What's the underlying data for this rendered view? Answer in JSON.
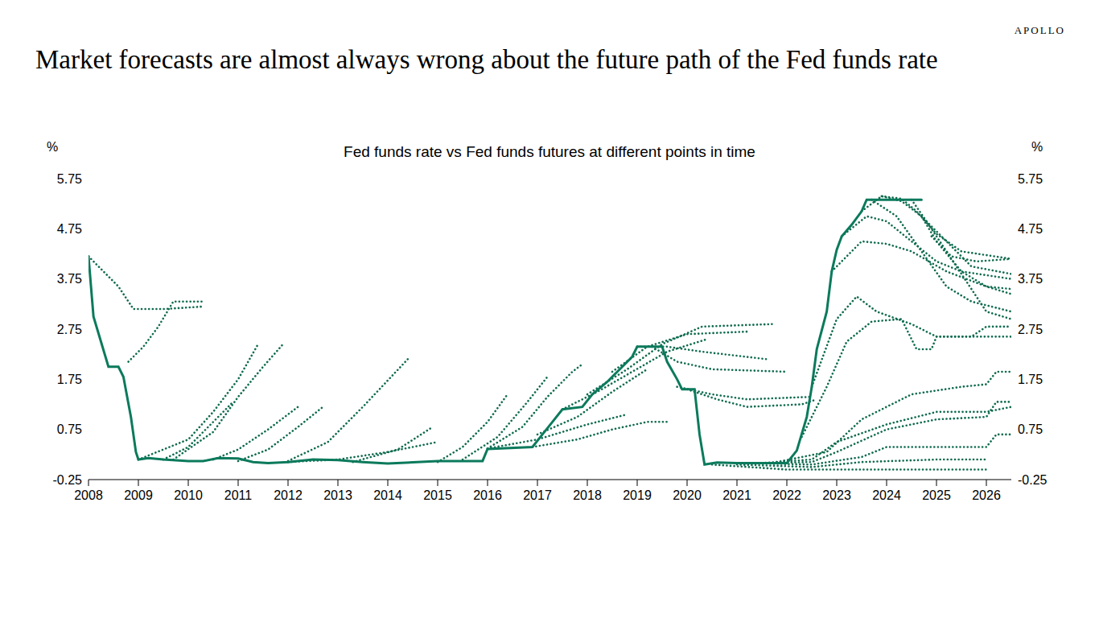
{
  "chart_data": {
    "type": "line",
    "title": "Market forecasts are almost always wrong about the future path of the Fed funds rate",
    "subtitle": "Fed funds rate vs Fed funds futures at different points in time",
    "brand": "APOLLO",
    "y_label": "%",
    "y2_label": "%",
    "grid": false,
    "xlim": [
      2008,
      2026.5
    ],
    "xticks": [
      2008,
      2009,
      2010,
      2011,
      2012,
      2013,
      2014,
      2015,
      2016,
      2017,
      2018,
      2019,
      2020,
      2021,
      2022,
      2023,
      2024,
      2025,
      2026
    ],
    "ylim": [
      -0.25,
      5.75
    ],
    "yticks": [
      -0.25,
      0.75,
      1.75,
      2.75,
      3.75,
      4.75,
      5.75
    ],
    "y2lim": [
      -0.25,
      5.75
    ],
    "y2ticks": [
      -0.25,
      0.75,
      1.75,
      2.75,
      3.75,
      4.75,
      5.75
    ],
    "series": [
      {
        "color": "#0f6b4f",
        "line_style": "dotted",
        "x": [
          2008.0,
          2008.3,
          2008.6,
          2008.9,
          2009.5,
          2010.3
        ],
        "values": [
          4.2,
          3.9,
          3.6,
          3.15,
          3.15,
          3.2
        ]
      },
      {
        "color": "#0f6b4f",
        "line_style": "dotted",
        "x": [
          2008.8,
          2009.1,
          2009.4,
          2009.7,
          2010.3
        ],
        "values": [
          2.1,
          2.4,
          2.8,
          3.3,
          3.3
        ]
      },
      {
        "color": "#0f6b4f",
        "line_style": "dotted",
        "x": [
          2009.0,
          2010.0,
          2010.5,
          2011.0,
          2011.4
        ],
        "values": [
          0.15,
          0.55,
          1.1,
          1.75,
          2.45
        ]
      },
      {
        "color": "#0f6b4f",
        "line_style": "dotted",
        "x": [
          2009.7,
          2010.5,
          2011.0,
          2011.5,
          2011.9
        ],
        "values": [
          0.15,
          0.7,
          1.4,
          2.0,
          2.45
        ]
      },
      {
        "color": "#0f6b4f",
        "line_style": "dotted",
        "x": [
          2009.5,
          2010.0,
          2010.5,
          2010.9
        ],
        "values": [
          0.15,
          0.4,
          0.9,
          1.3
        ]
      },
      {
        "color": "#0f6b4f",
        "line_style": "dotted",
        "x": [
          2010.5,
          2011.0,
          2011.6,
          2012.2
        ],
        "values": [
          0.15,
          0.35,
          0.75,
          1.2
        ]
      },
      {
        "color": "#0f6b4f",
        "line_style": "dotted",
        "x": [
          2011.0,
          2011.6,
          2012.2,
          2012.7
        ],
        "values": [
          0.12,
          0.35,
          0.8,
          1.2
        ]
      },
      {
        "color": "#0f6b4f",
        "line_style": "dotted",
        "x": [
          2012.0,
          2012.8,
          2013.5,
          2014.4
        ],
        "values": [
          0.12,
          0.5,
          1.2,
          2.15
        ]
      },
      {
        "color": "#0f6b4f",
        "line_style": "dotted",
        "x": [
          2013.3,
          2014.2,
          2014.9
        ],
        "values": [
          0.1,
          0.35,
          0.8
        ]
      },
      {
        "color": "#0f6b4f",
        "line_style": "dotted",
        "x": [
          2012.0,
          2013.0,
          2014.0,
          2015.0
        ],
        "values": [
          0.1,
          0.15,
          0.3,
          0.5
        ]
      },
      {
        "color": "#0f6b4f",
        "line_style": "dotted",
        "x": [
          2015.0,
          2015.5,
          2016.0,
          2016.4
        ],
        "values": [
          0.1,
          0.4,
          0.9,
          1.45
        ]
      },
      {
        "color": "#0f6b4f",
        "line_style": "dotted",
        "x": [
          2015.5,
          2016.2,
          2016.8,
          2017.2
        ],
        "values": [
          0.15,
          0.6,
          1.3,
          1.8
        ]
      },
      {
        "color": "#0f6b4f",
        "line_style": "dotted",
        "x": [
          2016.0,
          2016.7,
          2017.2,
          2017.7,
          2017.9
        ],
        "values": [
          0.37,
          0.8,
          1.4,
          1.9,
          2.05
        ]
      },
      {
        "color": "#0f6b4f",
        "line_style": "dotted",
        "x": [
          2016.0,
          2017.0,
          2018.0,
          2018.8
        ],
        "values": [
          0.37,
          0.55,
          0.85,
          1.05
        ]
      },
      {
        "color": "#0f6b4f",
        "line_style": "dotted",
        "x": [
          2016.9,
          2017.8,
          2018.5,
          2019.2,
          2019.6
        ],
        "values": [
          0.4,
          0.55,
          0.75,
          0.9,
          0.9
        ]
      },
      {
        "color": "#0f6b4f",
        "line_style": "dotted",
        "x": [
          2017.0,
          2017.8,
          2018.5,
          2019.2
        ],
        "values": [
          0.65,
          1.0,
          1.5,
          1.95
        ]
      },
      {
        "color": "#0f6b4f",
        "line_style": "dotted",
        "x": [
          2017.5,
          2018.2,
          2018.9,
          2019.6,
          2020.4
        ],
        "values": [
          1.15,
          1.5,
          1.9,
          2.3,
          2.55
        ]
      },
      {
        "color": "#0f6b4f",
        "line_style": "dotted",
        "x": [
          2018.0,
          2018.8,
          2019.5,
          2020.3,
          2021.7
        ],
        "values": [
          1.45,
          1.95,
          2.45,
          2.8,
          2.85
        ]
      },
      {
        "color": "#0f6b4f",
        "line_style": "dotted",
        "x": [
          2018.5,
          2019.2,
          2020.0,
          2021.2
        ],
        "values": [
          1.9,
          2.4,
          2.65,
          2.7
        ]
      },
      {
        "color": "#0f6b4f",
        "line_style": "dotted",
        "x": [
          2019.0,
          2019.6,
          2020.3,
          2021.6
        ],
        "values": [
          2.4,
          2.4,
          2.3,
          2.15
        ]
      },
      {
        "color": "#0f6b4f",
        "line_style": "dotted",
        "x": [
          2019.3,
          2019.8,
          2020.5,
          2022.0
        ],
        "values": [
          2.4,
          2.1,
          1.95,
          1.9
        ]
      },
      {
        "color": "#0f6b4f",
        "line_style": "dotted",
        "x": [
          2019.8,
          2020.5,
          2021.2,
          2022.5
        ],
        "values": [
          1.6,
          1.45,
          1.35,
          1.4
        ]
      },
      {
        "color": "#0f6b4f",
        "line_style": "dotted",
        "x": [
          2020.0,
          2020.6,
          2021.2,
          2022.3,
          2022.6
        ],
        "values": [
          1.55,
          1.35,
          1.2,
          1.25,
          1.35
        ]
      },
      {
        "color": "#0f6b4f",
        "line_style": "dotted",
        "x": [
          2020.5,
          2022.0,
          2023.0,
          2026.0
        ],
        "values": [
          0.05,
          -0.05,
          -0.05,
          -0.05
        ]
      },
      {
        "color": "#0f6b4f",
        "line_style": "dotted",
        "x": [
          2021.0,
          2022.5,
          2023.5,
          2025.0,
          2026.0
        ],
        "values": [
          0.05,
          0.0,
          0.1,
          0.15,
          0.15
        ]
      },
      {
        "color": "#0f6b4f",
        "line_style": "dotted",
        "x": [
          2021.0,
          2022.5,
          2023.5,
          2024.0,
          2026.0,
          2026.2,
          2026.5
        ],
        "values": [
          0.08,
          0.05,
          0.2,
          0.4,
          0.4,
          0.65,
          0.65
        ]
      },
      {
        "color": "#0f6b4f",
        "line_style": "dotted",
        "x": [
          2021.5,
          2022.5,
          2023.0,
          2024.0,
          2025.0,
          2026.0,
          2026.2,
          2026.5
        ],
        "values": [
          0.08,
          0.1,
          0.3,
          0.75,
          0.95,
          1.0,
          1.3,
          1.3
        ]
      },
      {
        "color": "#0f6b4f",
        "line_style": "dotted",
        "x": [
          2021.5,
          2022.5,
          2023.0,
          2024.0,
          2025.0,
          2026.0,
          2026.5
        ],
        "values": [
          0.08,
          0.15,
          0.5,
          0.85,
          1.1,
          1.1,
          1.2
        ]
      },
      {
        "color": "#0f6b4f",
        "line_style": "dotted",
        "x": [
          2021.8,
          2022.8,
          2023.5,
          2024.5,
          2025.5,
          2026.0,
          2026.2,
          2026.5
        ],
        "values": [
          0.1,
          0.3,
          0.95,
          1.45,
          1.6,
          1.65,
          1.9,
          1.9
        ]
      },
      {
        "color": "#0f6b4f",
        "line_style": "dotted",
        "x": [
          2022.3,
          2022.8,
          2023.2,
          2023.7,
          2024.3,
          2024.6,
          2024.9,
          2025.0,
          2026.5
        ],
        "values": [
          0.6,
          1.6,
          2.5,
          2.9,
          2.95,
          2.35,
          2.35,
          2.6,
          2.6
        ]
      },
      {
        "color": "#0f6b4f",
        "line_style": "dotted",
        "x": [
          2022.5,
          2023.0,
          2023.4,
          2023.8,
          2024.5,
          2025.0,
          2025.7,
          2026.0,
          2026.5
        ],
        "values": [
          1.6,
          2.95,
          3.4,
          3.1,
          2.85,
          2.6,
          2.6,
          2.8,
          2.8
        ]
      },
      {
        "color": "#0f6b4f",
        "line_style": "dotted",
        "x": [
          2022.9,
          2023.5,
          2024.0,
          2024.5,
          2025.2,
          2026.0,
          2026.5
        ],
        "values": [
          3.9,
          4.5,
          4.45,
          4.3,
          3.9,
          3.6,
          3.55
        ]
      },
      {
        "color": "#0f6b4f",
        "line_style": "dotted",
        "x": [
          2023.1,
          2023.6,
          2024.0,
          2024.5,
          2025.0,
          2025.5,
          2026.5
        ],
        "values": [
          4.6,
          5.0,
          4.9,
          4.5,
          4.1,
          3.9,
          3.75
        ]
      },
      {
        "color": "#0f6b4f",
        "line_style": "dotted",
        "x": [
          2023.5,
          2023.9,
          2024.3,
          2024.7,
          2025.2,
          2025.7,
          2026.5
        ],
        "values": [
          5.1,
          5.4,
          5.3,
          5.0,
          4.5,
          4.0,
          3.85
        ]
      },
      {
        "color": "#0f6b4f",
        "line_style": "dotted",
        "x": [
          2023.9,
          2024.3,
          2024.6,
          2025.0,
          2025.5,
          2026.5
        ],
        "values": [
          5.4,
          5.35,
          5.1,
          4.65,
          4.3,
          4.15
        ]
      },
      {
        "color": "#0f6b4f",
        "line_style": "dotted",
        "x": [
          2024.5,
          2024.8,
          2025.2,
          2025.6,
          2026.0,
          2026.5
        ],
        "values": [
          5.33,
          4.9,
          4.3,
          3.7,
          3.1,
          2.95
        ]
      },
      {
        "color": "#0f6b4f",
        "line_style": "dotted",
        "x": [
          2024.7,
          2025.0,
          2025.5,
          2026.0,
          2026.5
        ],
        "values": [
          5.0,
          4.5,
          3.9,
          3.6,
          3.45
        ]
      },
      {
        "color": "#0f6b4f",
        "line_style": "dotted",
        "x": [
          2023.7,
          2024.2,
          2024.7,
          2025.2,
          2025.7,
          2026.5
        ],
        "values": [
          5.33,
          5.0,
          4.3,
          3.6,
          3.3,
          3.1
        ]
      },
      {
        "color": "#0f6b4f",
        "line_style": "dotted",
        "x": [
          2024.9,
          2025.3,
          2025.8,
          2026.5
        ],
        "values": [
          4.6,
          4.2,
          4.1,
          4.15
        ]
      },
      {
        "color": "#0b7a5c",
        "line_style": "solid",
        "x": [
          2008.0,
          2008.1,
          2008.4,
          2008.6,
          2008.7,
          2008.85,
          2008.95,
          2009.0,
          2009.2,
          2009.5,
          2010.0,
          2010.3,
          2010.6,
          2011.0,
          2011.3,
          2011.6,
          2012.0,
          2012.5,
          2013.0,
          2013.5,
          2014.0,
          2015.0,
          2015.9,
          2016.0,
          2016.9,
          2017.1,
          2017.3,
          2017.5,
          2017.9,
          2018.1,
          2018.4,
          2018.6,
          2018.9,
          2019.0,
          2019.5,
          2019.6,
          2019.8,
          2019.9,
          2020.15,
          2020.25,
          2020.35,
          2020.6,
          2021.0,
          2021.5,
          2022.0,
          2022.2,
          2022.4,
          2022.5,
          2022.6,
          2022.8,
          2022.9,
          2023.0,
          2023.1,
          2023.3,
          2023.5,
          2023.6,
          2024.7
        ],
        "values": [
          4.2,
          3.0,
          2.0,
          2.0,
          1.8,
          1.0,
          0.3,
          0.15,
          0.18,
          0.15,
          0.12,
          0.12,
          0.18,
          0.17,
          0.1,
          0.08,
          0.1,
          0.15,
          0.14,
          0.1,
          0.07,
          0.12,
          0.12,
          0.36,
          0.4,
          0.65,
          0.9,
          1.15,
          1.2,
          1.45,
          1.7,
          1.9,
          2.2,
          2.4,
          2.4,
          2.1,
          1.75,
          1.55,
          1.55,
          0.65,
          0.05,
          0.09,
          0.08,
          0.08,
          0.08,
          0.33,
          1.0,
          1.6,
          2.35,
          3.1,
          3.9,
          4.33,
          4.6,
          4.83,
          5.1,
          5.33,
          5.33
        ]
      }
    ]
  }
}
